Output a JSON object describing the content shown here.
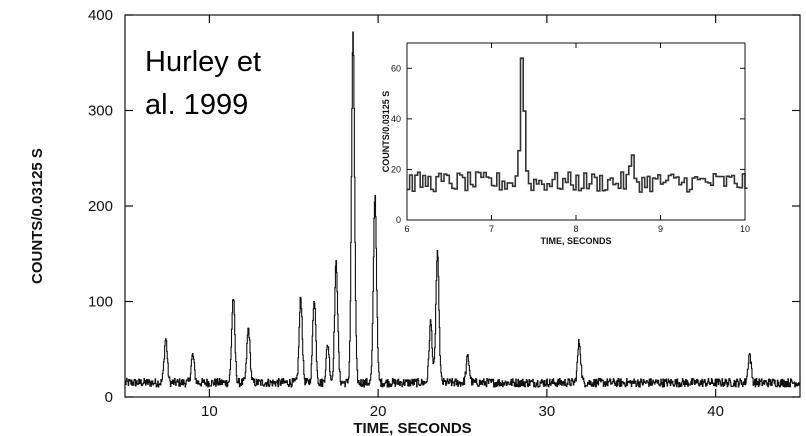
{
  "chart_data": [
    {
      "type": "line",
      "title": "",
      "xlabel": "TIME, SECONDS",
      "ylabel": "COUNTS/0.03125 S",
      "xlim": [
        5,
        45
      ],
      "ylim": [
        0,
        400
      ],
      "xticks": [
        10,
        20,
        30,
        40
      ],
      "yticks": [
        0,
        100,
        200,
        300,
        400
      ],
      "grid": false,
      "baseline": 15,
      "series": [
        {
          "values_description_peaks": true,
          "peaks": [
            {
              "x": 7.4,
              "y": 61
            },
            {
              "x": 9.0,
              "y": 44
            },
            {
              "x": 11.4,
              "y": 104
            },
            {
              "x": 12.3,
              "y": 72
            },
            {
              "x": 15.4,
              "y": 104
            },
            {
              "x": 16.2,
              "y": 104
            },
            {
              "x": 17.0,
              "y": 55
            },
            {
              "x": 17.5,
              "y": 140
            },
            {
              "x": 18.5,
              "y": 378
            },
            {
              "x": 19.8,
              "y": 212
            },
            {
              "x": 23.1,
              "y": 78
            },
            {
              "x": 23.5,
              "y": 150
            },
            {
              "x": 25.3,
              "y": 42
            },
            {
              "x": 31.9,
              "y": 58
            },
            {
              "x": 42.0,
              "y": 45
            }
          ]
        }
      ]
    },
    {
      "type": "line",
      "title": "",
      "xlabel": "TIME, SECONDS",
      "ylabel": "COUNTS/0.03125 S",
      "xlim": [
        6,
        10
      ],
      "ylim": [
        0,
        70
      ],
      "xticks": [
        6,
        7,
        8,
        9,
        10
      ],
      "yticks": [
        0,
        20,
        40,
        60
      ],
      "grid": false,
      "baseline": 15,
      "series": [
        {
          "peaks": [
            {
              "x": 7.35,
              "y": 64
            },
            {
              "x": 8.65,
              "y": 23
            }
          ]
        }
      ]
    }
  ],
  "annotation": {
    "line1": "Hurley et",
    "line2": "al. 1999"
  },
  "colors": {
    "trace": "#111111",
    "axis": "#111111",
    "background": "#ffffff"
  }
}
